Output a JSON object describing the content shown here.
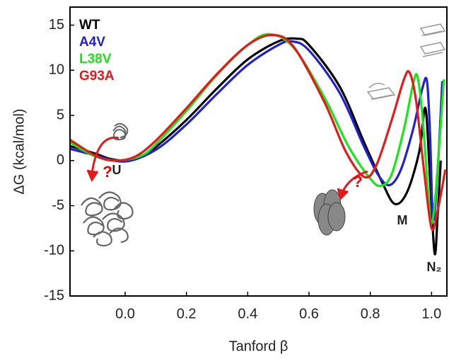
{
  "chart_data": {
    "type": "line",
    "x_label": "Tanford β",
    "y_label": "ΔG (kcal/mol)",
    "xlim": [
      -0.18,
      1.05
    ],
    "ylim": [
      -15,
      17
    ],
    "xticks": [
      {
        "value": 0,
        "label": "0.0"
      },
      0.2,
      0.4,
      0.6,
      0.8,
      {
        "value": 1,
        "label": "1.0"
      }
    ],
    "yticks": [
      -15,
      -10,
      -5,
      0,
      5,
      10,
      15
    ],
    "grid": false,
    "series": [
      {
        "name": "WT",
        "color": "#000000",
        "x": [
          -0.18,
          -0.1,
          -0.05,
          0.0,
          0.05,
          0.1,
          0.2,
          0.3,
          0.4,
          0.5,
          0.56,
          0.6,
          0.7,
          0.78,
          0.84,
          0.88,
          0.92,
          0.96,
          0.98,
          0.995,
          1.01,
          1.02,
          1.03
        ],
        "values": [
          1.6,
          0.8,
          0.2,
          0.0,
          0.4,
          1.5,
          4.5,
          8.0,
          11.2,
          13.2,
          13.5,
          12.8,
          8.2,
          2.0,
          -2.5,
          -4.8,
          -3.5,
          1.0,
          5.8,
          -2,
          -10.3,
          -6,
          0
        ]
      },
      {
        "name": "A4V",
        "color": "#1f1fd6",
        "x": [
          -0.18,
          -0.1,
          0.0,
          0.1,
          0.2,
          0.3,
          0.4,
          0.5,
          0.545,
          0.6,
          0.7,
          0.78,
          0.83,
          0.865,
          0.9,
          0.94,
          0.97,
          0.985,
          0.995,
          1.005,
          1.02,
          1.035
        ],
        "values": [
          1.3,
          0.6,
          -0.1,
          1.2,
          4.0,
          7.4,
          10.6,
          12.8,
          13.2,
          12.2,
          7.5,
          1.5,
          -1.8,
          -2.7,
          -1.0,
          3.5,
          8.0,
          8.8,
          3,
          -6.5,
          -1,
          8.8
        ]
      },
      {
        "name": "L38V",
        "color": "#19e619",
        "x": [
          -0.18,
          -0.1,
          -0.03,
          0.05,
          0.1,
          0.2,
          0.3,
          0.4,
          0.47,
          0.55,
          0.65,
          0.73,
          0.8,
          0.835,
          0.87,
          0.91,
          0.94,
          0.954,
          0.97,
          0.99,
          1.0,
          1.015,
          1.04
        ],
        "values": [
          2.0,
          0.5,
          0,
          0.5,
          1.8,
          5.5,
          9.5,
          12.8,
          14.0,
          12.5,
          7,
          1.5,
          -2.0,
          -2.8,
          -1.5,
          3.5,
          8.5,
          9.3,
          5,
          -4,
          -7,
          -3,
          9
        ]
      },
      {
        "name": "G93A",
        "color": "#e61919",
        "x": [
          -0.18,
          -0.1,
          -0.04,
          0.03,
          0.1,
          0.2,
          0.3,
          0.4,
          0.48,
          0.55,
          0.65,
          0.72,
          0.78,
          0.82,
          0.87,
          0.91,
          0.929,
          0.95,
          0.975,
          1.0,
          1.02,
          1.045
        ],
        "values": [
          2.3,
          0.6,
          0,
          0.4,
          2.2,
          5.8,
          9.6,
          12.8,
          13.9,
          12.6,
          6.5,
          1.0,
          -1.8,
          -0.5,
          4.5,
          9.0,
          9.7,
          6.5,
          -1,
          -7.5,
          -5.5,
          -1
        ]
      }
    ],
    "annotations": [
      "U",
      "M",
      "N₂",
      "?",
      "?"
    ]
  }
}
